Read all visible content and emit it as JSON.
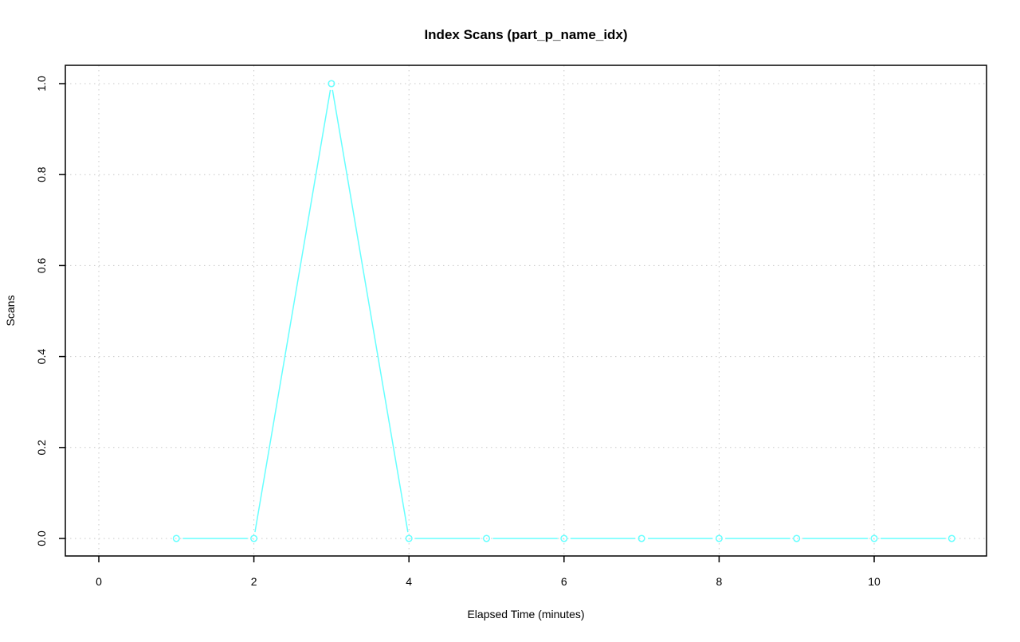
{
  "chart_data": {
    "type": "line",
    "title": "Index Scans (part_p_name_idx)",
    "xlabel": "Elapsed Time (minutes)",
    "ylabel": "Scans",
    "x": [
      1,
      2,
      3,
      4,
      5,
      6,
      7,
      8,
      9,
      10,
      11
    ],
    "series": [
      {
        "values": [
          0,
          0,
          1,
          0,
          0,
          0,
          0,
          0,
          0,
          0,
          0
        ],
        "color": "#66FFFF"
      }
    ],
    "xlim": [
      0,
      11
    ],
    "ylim": [
      0,
      1
    ],
    "xticks": [
      0,
      2,
      4,
      6,
      8,
      10
    ],
    "xtick_labels": [
      "0",
      "2",
      "4",
      "6",
      "8",
      "10"
    ],
    "yticks": [
      0,
      0.2,
      0.4,
      0.6,
      0.8,
      1.0
    ],
    "ytick_labels": [
      "0.0",
      "0.2",
      "0.4",
      "0.6",
      "0.8",
      "1.0"
    ],
    "grid": true,
    "markers": "open-circle"
  }
}
